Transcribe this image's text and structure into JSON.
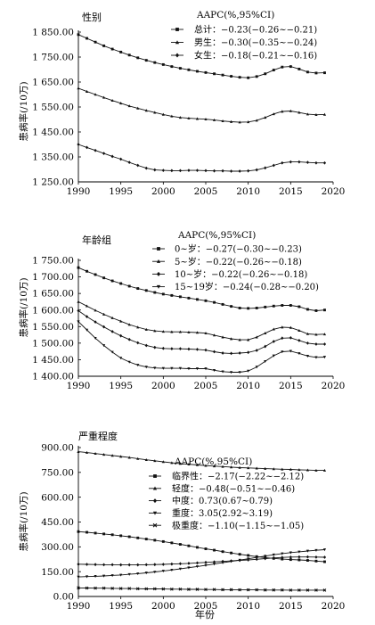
{
  "chart_data": [
    {
      "type": "line",
      "title": "性别",
      "ylabel": "患病率(/10万)",
      "xlabel": "",
      "xlim": [
        1990,
        2020
      ],
      "ylim": [
        1250,
        1850
      ],
      "xticks": [
        "1990",
        "1995",
        "2000",
        "2005",
        "2010",
        "2015",
        "2020"
      ],
      "yticks": [
        "1 250.00",
        "1 350.00",
        "1 450.00",
        "1 550.00",
        "1 650.00",
        "1 750.00",
        "1 850.00"
      ],
      "legend": {
        "title": "AAPC(%,95%CI)",
        "placement": "top-right"
      },
      "x": [
        1990,
        1991,
        1992,
        1993,
        1994,
        1995,
        1996,
        1997,
        1998,
        1999,
        2000,
        2001,
        2002,
        2003,
        2004,
        2005,
        2006,
        2007,
        2008,
        2009,
        2010,
        2011,
        2012,
        2013,
        2014,
        2015,
        2016,
        2017,
        2018,
        2019
      ],
      "series": [
        {
          "name": "总计",
          "aapc": "−0.23(−0.26~−0.21)",
          "marker": "square",
          "values": [
            1840,
            1825,
            1810,
            1795,
            1782,
            1770,
            1758,
            1747,
            1737,
            1728,
            1720,
            1712,
            1705,
            1699,
            1693,
            1688,
            1683,
            1678,
            1673,
            1669,
            1667,
            1672,
            1683,
            1698,
            1710,
            1712,
            1702,
            1690,
            1686,
            1687
          ]
        },
        {
          "name": "男生",
          "aapc": "−0.30(−0.35~−0.24)",
          "marker": "triangle",
          "values": [
            1625,
            1612,
            1600,
            1588,
            1576,
            1565,
            1554,
            1545,
            1536,
            1528,
            1520,
            1513,
            1508,
            1505,
            1503,
            1501,
            1498,
            1494,
            1491,
            1489,
            1490,
            1496,
            1508,
            1522,
            1532,
            1534,
            1528,
            1521,
            1519,
            1520
          ]
        },
        {
          "name": "女生",
          "aapc": "−0.18(−0.21~−0.16)",
          "marker": "diamond",
          "values": [
            1400,
            1388,
            1376,
            1364,
            1352,
            1341,
            1328,
            1316,
            1305,
            1298,
            1296,
            1295,
            1295,
            1296,
            1296,
            1295,
            1294,
            1294,
            1293,
            1293,
            1294,
            1298,
            1306,
            1316,
            1326,
            1330,
            1330,
            1328,
            1326,
            1326
          ]
        }
      ]
    },
    {
      "type": "line",
      "title": "年龄组",
      "ylabel": "患病率(/10万)",
      "xlabel": "",
      "xlim": [
        1990,
        2020
      ],
      "ylim": [
        1400,
        1750
      ],
      "xticks": [
        "1990",
        "1995",
        "2000",
        "2005",
        "2010",
        "2015",
        "2020"
      ],
      "yticks": [
        "1 400.00",
        "1 450.00",
        "1 500.00",
        "1 550.00",
        "1 600.00",
        "1 650.00",
        "1 700.00",
        "1 750.00"
      ],
      "legend": {
        "title": "AAPC(%,95%CI)",
        "placement": "top-right"
      },
      "x": [
        1990,
        1991,
        1992,
        1993,
        1994,
        1995,
        1996,
        1997,
        1998,
        1999,
        2000,
        2001,
        2002,
        2003,
        2004,
        2005,
        2006,
        2007,
        2008,
        2009,
        2010,
        2011,
        2012,
        2013,
        2014,
        2015,
        2016,
        2017,
        2018,
        2019
      ],
      "series": [
        {
          "name": "0~岁",
          "aapc": "−0.27(−0.30~−0.23)",
          "marker": "square",
          "values": [
            1728,
            1717,
            1707,
            1697,
            1688,
            1680,
            1672,
            1665,
            1659,
            1653,
            1648,
            1644,
            1640,
            1636,
            1632,
            1628,
            1623,
            1617,
            1611,
            1606,
            1605,
            1606,
            1609,
            1612,
            1614,
            1614,
            1610,
            1602,
            1598,
            1600
          ]
        },
        {
          "name": "5~岁",
          "aapc": "−0.22(−0.26~−0.18)",
          "marker": "triangle",
          "values": [
            1625,
            1612,
            1599,
            1587,
            1576,
            1566,
            1556,
            1548,
            1541,
            1537,
            1535,
            1534,
            1534,
            1533,
            1532,
            1530,
            1524,
            1518,
            1513,
            1510,
            1510,
            1518,
            1530,
            1542,
            1548,
            1547,
            1538,
            1528,
            1526,
            1527
          ]
        },
        {
          "name": "10~岁",
          "aapc": "−0.22(−0.26~−0.18)",
          "marker": "diamond",
          "values": [
            1598,
            1580,
            1564,
            1549,
            1535,
            1522,
            1511,
            1501,
            1493,
            1487,
            1484,
            1483,
            1483,
            1482,
            1481,
            1479,
            1474,
            1470,
            1469,
            1470,
            1472,
            1478,
            1490,
            1505,
            1515,
            1516,
            1508,
            1500,
            1497,
            1497
          ]
        },
        {
          "name": "15~19岁",
          "aapc": "−0.24(−0.28~−0.20)",
          "marker": "triangle-down",
          "values": [
            1565,
            1540,
            1515,
            1493,
            1473,
            1455,
            1443,
            1434,
            1428,
            1425,
            1424,
            1424,
            1424,
            1423,
            1423,
            1423,
            1418,
            1414,
            1412,
            1412,
            1416,
            1428,
            1445,
            1462,
            1474,
            1476,
            1469,
            1461,
            1457,
            1458
          ]
        }
      ]
    },
    {
      "type": "line",
      "title": "严重程度",
      "ylabel": "患病率(/10万)",
      "xlabel": "年份",
      "xlim": [
        1990,
        2020
      ],
      "ylim": [
        0,
        900
      ],
      "xticks": [
        "1990",
        "1995",
        "2000",
        "2005",
        "2010",
        "2015",
        "2020"
      ],
      "yticks": [
        "0.00",
        "150.00",
        "300.00",
        "450.00",
        "600.00",
        "750.00",
        "900.00"
      ],
      "legend": {
        "title": "AAPC(%,95%CI)",
        "placement": "right"
      },
      "x": [
        1990,
        1991,
        1992,
        1993,
        1994,
        1995,
        1996,
        1997,
        1998,
        1999,
        2000,
        2001,
        2002,
        2003,
        2004,
        2005,
        2006,
        2007,
        2008,
        2009,
        2010,
        2011,
        2012,
        2013,
        2014,
        2015,
        2016,
        2017,
        2018,
        2019
      ],
      "series": [
        {
          "name": "临界性",
          "aapc": "−2.17(−2.22~−2.12)",
          "marker": "square",
          "values": [
            392,
            388,
            383,
            378,
            373,
            367,
            361,
            354,
            347,
            340,
            332,
            324,
            315,
            306,
            297,
            288,
            280,
            271,
            263,
            255,
            248,
            241,
            235,
            230,
            226,
            223,
            221,
            218,
            214,
            210
          ]
        },
        {
          "name": "轻度",
          "aapc": "−0.48(−0.51~−0.46)",
          "marker": "triangle",
          "values": [
            875,
            870,
            864,
            858,
            852,
            846,
            840,
            833,
            826,
            820,
            814,
            808,
            803,
            799,
            795,
            791,
            788,
            785,
            782,
            779,
            777,
            775,
            773,
            771,
            769,
            768,
            766,
            764,
            762,
            762
          ]
        },
        {
          "name": "中度",
          "aapc": "0.73(0.67~0.79)",
          "marker": "diamond",
          "values": [
            195,
            194,
            193,
            192,
            192,
            191,
            191,
            191,
            192,
            193,
            194,
            196,
            198,
            200,
            203,
            206,
            209,
            212,
            215,
            218,
            221,
            225,
            229,
            233,
            236,
            238,
            239,
            239,
            238,
            237
          ]
        },
        {
          "name": "重度",
          "aapc": "3.05(2.92~3.19)",
          "marker": "triangle-down",
          "values": [
            118,
            120,
            122,
            124,
            127,
            130,
            134,
            138,
            143,
            148,
            154,
            160,
            167,
            174,
            181,
            188,
            196,
            204,
            212,
            220,
            228,
            236,
            244,
            252,
            259,
            265,
            270,
            275,
            279,
            283
          ]
        },
        {
          "name": "极重度",
          "aapc": "−1.10(−1.15~−1.05)",
          "marker": "cross",
          "values": [
            52,
            51,
            50,
            50,
            49,
            48,
            48,
            47,
            46,
            46,
            45,
            44,
            44,
            43,
            43,
            42,
            42,
            41,
            41,
            40,
            40,
            40,
            39,
            39,
            39,
            38,
            38,
            38,
            38,
            38
          ]
        }
      ]
    }
  ]
}
